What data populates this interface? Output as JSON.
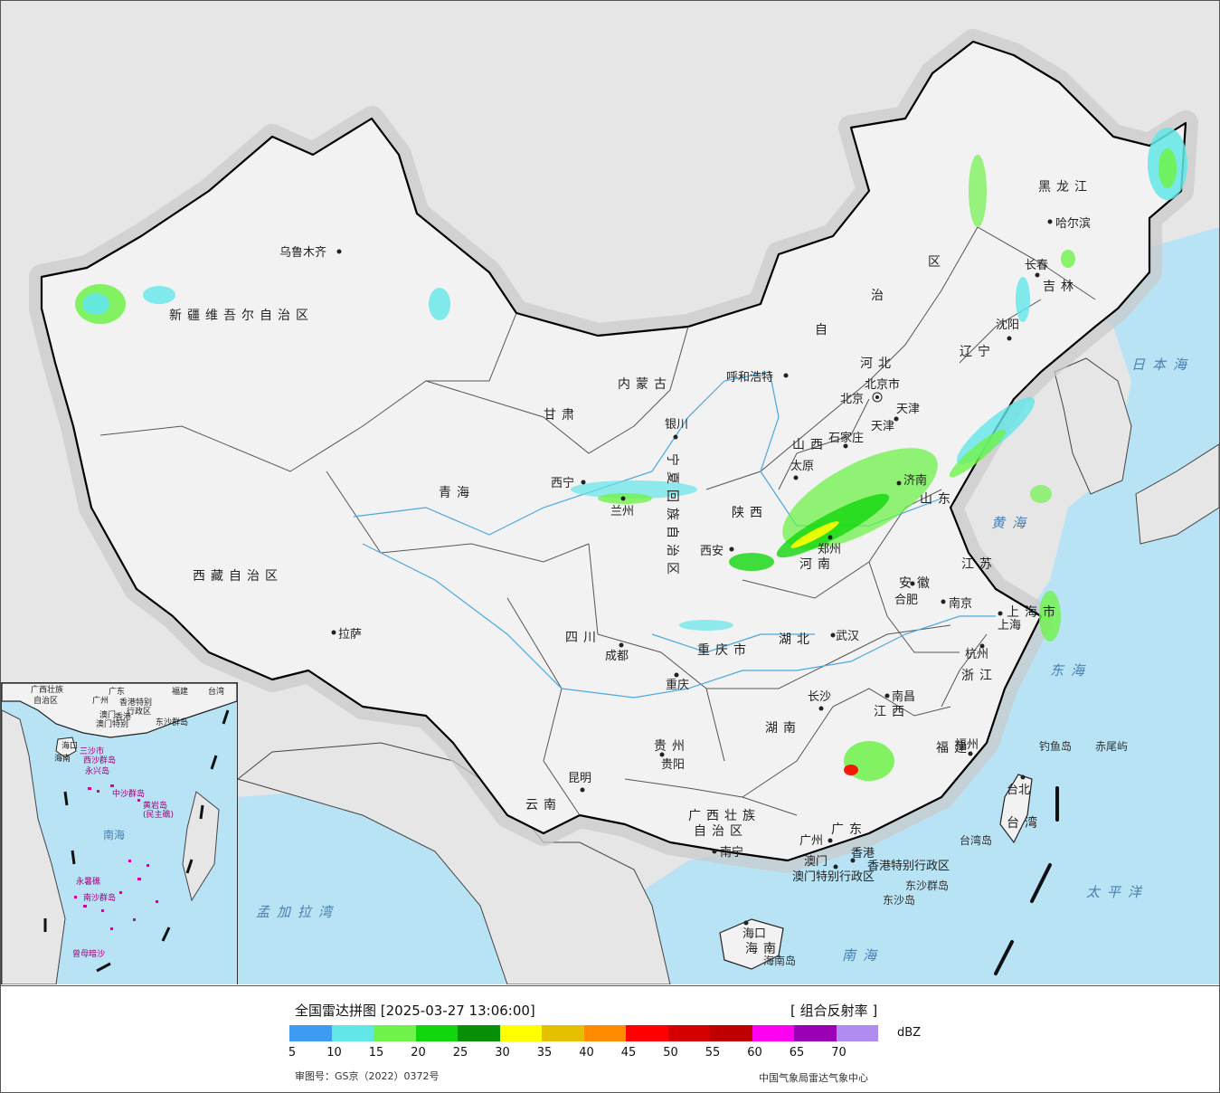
{
  "map": {
    "provinces": [
      {
        "label": "新疆维吾尔自治区"
      },
      {
        "label": "西藏自治区"
      },
      {
        "label": "青海"
      },
      {
        "label": "甘肃"
      },
      {
        "label": "四川"
      },
      {
        "label": "云南"
      },
      {
        "label": "内蒙古"
      },
      {
        "label": "黑龙江"
      },
      {
        "label": "吉林"
      },
      {
        "label": "辽宁"
      },
      {
        "label": "河北"
      },
      {
        "label": "山西"
      },
      {
        "label": "陕西"
      },
      {
        "label": "河南"
      },
      {
        "label": "山东"
      },
      {
        "label": "江苏"
      },
      {
        "label": "安徽"
      },
      {
        "label": "湖北"
      },
      {
        "label": "重庆市"
      },
      {
        "label": "贵州"
      },
      {
        "label": "湖南"
      },
      {
        "label": "江西"
      },
      {
        "label": "浙江"
      },
      {
        "label": "福建"
      },
      {
        "label": "广东"
      },
      {
        "label": "广西壮族"
      },
      {
        "label": "自治区"
      },
      {
        "label": "海南"
      },
      {
        "label": "上海市"
      },
      {
        "label": "台湾"
      },
      {
        "label": "宁夏回族自治区"
      },
      {
        "label": "自"
      },
      {
        "label": "治"
      },
      {
        "label": "区"
      },
      {
        "label": "天津"
      }
    ],
    "cities": [
      {
        "label": "乌鲁木齐"
      },
      {
        "label": "拉萨"
      },
      {
        "label": "西宁"
      },
      {
        "label": "兰州"
      },
      {
        "label": "银川"
      },
      {
        "label": "呼和浩特"
      },
      {
        "label": "北京"
      },
      {
        "label": "北京市"
      },
      {
        "label": "天津"
      },
      {
        "label": "石家庄"
      },
      {
        "label": "太原"
      },
      {
        "label": "济南"
      },
      {
        "label": "郑州"
      },
      {
        "label": "西安"
      },
      {
        "label": "成都"
      },
      {
        "label": "重庆"
      },
      {
        "label": "武汉"
      },
      {
        "label": "合肥"
      },
      {
        "label": "南京"
      },
      {
        "label": "上海"
      },
      {
        "label": "杭州"
      },
      {
        "label": "南昌"
      },
      {
        "label": "长沙"
      },
      {
        "label": "贵阳"
      },
      {
        "label": "昆明"
      },
      {
        "label": "南宁"
      },
      {
        "label": "广州"
      },
      {
        "label": "福州"
      },
      {
        "label": "台北"
      },
      {
        "label": "香港"
      },
      {
        "label": "澳门"
      },
      {
        "label": "海口"
      },
      {
        "label": "长春"
      },
      {
        "label": "沈阳"
      },
      {
        "label": "哈尔滨"
      }
    ],
    "seas": [
      {
        "label": "日本海"
      },
      {
        "label": "黄海"
      },
      {
        "label": "东海"
      },
      {
        "label": "太平洋"
      },
      {
        "label": "南海"
      },
      {
        "label": "孟加拉湾"
      }
    ],
    "special_labels": [
      {
        "label": "香港特别行政区"
      },
      {
        "label": "澳门特别行政区"
      },
      {
        "label": "东沙群岛"
      },
      {
        "label": "东沙岛"
      },
      {
        "label": "海南岛"
      },
      {
        "label": "台湾岛"
      },
      {
        "label": "钓鱼岛"
      },
      {
        "label": "赤尾屿"
      }
    ],
    "inset": {
      "labels": [
        {
          "label": "广西壮族"
        },
        {
          "label": "自治区"
        },
        {
          "label": "广东"
        },
        {
          "label": "福建"
        },
        {
          "label": "台湾"
        },
        {
          "label": "香港特别"
        },
        {
          "label": "行政区"
        },
        {
          "label": "东沙群岛"
        },
        {
          "label": "澳门特别"
        },
        {
          "label": "海口"
        },
        {
          "label": "西沙群岛"
        },
        {
          "label": "中沙群岛"
        },
        {
          "label": "黄岩岛"
        },
        {
          "label": "南海"
        },
        {
          "label": "南沙群岛"
        },
        {
          "label": "曾母暗沙"
        },
        {
          "label": "永暑礁"
        },
        {
          "label": "广州"
        },
        {
          "label": "香港"
        },
        {
          "label": "澳门"
        },
        {
          "label": "海南"
        },
        {
          "label": "三沙市"
        },
        {
          "label": "永兴岛"
        },
        {
          "label": "(民主礁)"
        }
      ]
    }
  },
  "legend": {
    "title": "全国雷达拼图 [2025-03-27 13:06:00]",
    "product": "[ 组合反射率 ]",
    "unit": "dBZ",
    "ticks": [
      "5",
      "10",
      "15",
      "20",
      "25",
      "30",
      "35",
      "40",
      "45",
      "50",
      "55",
      "60",
      "65",
      "70"
    ],
    "colors": [
      "#3f9bf2",
      "#63e6e8",
      "#6ff24a",
      "#10d70d",
      "#079007",
      "#ffff00",
      "#e5c000",
      "#ff8c00",
      "#ff0000",
      "#d40000",
      "#bf0000",
      "#ff00f0",
      "#9b00b4",
      "#b08cf0"
    ],
    "approval": "审图号：GS京（2022）0372号",
    "issuer": "中国气象局雷达气象中心"
  }
}
